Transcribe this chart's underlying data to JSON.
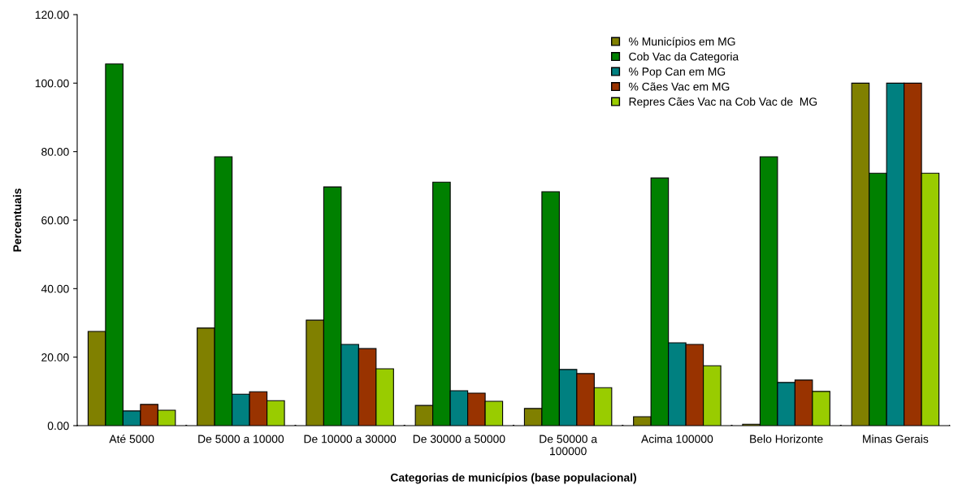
{
  "chart_data": {
    "type": "bar",
    "xlabel": "Categorias de municípios (base populacional)",
    "ylabel": "Percentuais",
    "categories": [
      "Até 5000",
      "De 5000 a 10000",
      "De 10000 a 30000",
      "De 30000 a 50000",
      "De 50000 a\n100000",
      "Acima 100000",
      "Belo Horizonte",
      "Minas Gerais"
    ],
    "series": [
      {
        "name": "% Municípios em MG",
        "color": "#808000",
        "values": [
          27.5,
          28.5,
          30.8,
          5.9,
          5.0,
          2.6,
          0.4,
          100.0
        ]
      },
      {
        "name": "Cob Vac da Categoria",
        "color": "#008000",
        "values": [
          105.6,
          78.5,
          69.7,
          71.1,
          68.3,
          72.3,
          78.5,
          73.7
        ]
      },
      {
        "name": "% Pop Can em MG",
        "color": "#008080",
        "values": [
          4.3,
          9.2,
          23.7,
          10.2,
          16.4,
          24.2,
          12.6,
          100.0
        ]
      },
      {
        "name": "% Cães Vac em MG",
        "color": "#993300",
        "values": [
          6.2,
          9.9,
          22.5,
          9.5,
          15.2,
          23.7,
          13.3,
          100.0
        ]
      },
      {
        "name": "Repres Cães Vac na Cob Vac de  MG",
        "color": "#99cc00",
        "values": [
          4.5,
          7.3,
          16.6,
          7.1,
          11.1,
          17.5,
          10.0,
          73.7
        ]
      }
    ],
    "ylim": [
      0,
      120
    ],
    "yticks": [
      {
        "value": 0,
        "label": "0.00"
      },
      {
        "value": 20,
        "label": "20.00"
      },
      {
        "value": 40,
        "label": "40.00"
      },
      {
        "value": 60,
        "label": "60.00"
      },
      {
        "value": 80,
        "label": "80.00"
      },
      {
        "value": 100,
        "label": "100.00"
      },
      {
        "value": 120,
        "label": "120.00"
      }
    ],
    "grid": false,
    "legend": "top right"
  }
}
